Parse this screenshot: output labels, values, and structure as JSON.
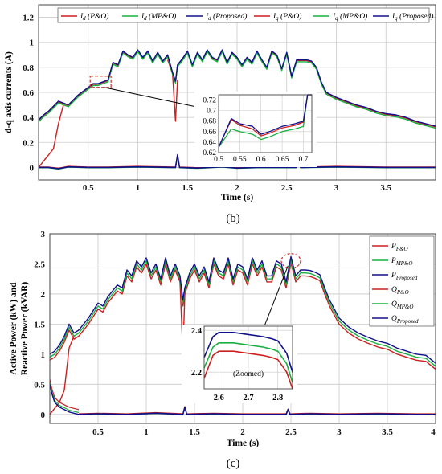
{
  "colors": {
    "red": "#cc2020",
    "green": "#18b040",
    "blue": "#10108a",
    "grid": "#c9c9c9",
    "zoom_box": "#cc3030"
  },
  "chart_data": [
    {
      "type": "line",
      "caption": "(b)",
      "xlabel": "Time (s)",
      "ylabel": "d-q axis currents (A)",
      "xlim": [
        0,
        4
      ],
      "ylim": [
        -0.1,
        1.3
      ],
      "xticks": [
        "0.5",
        "1",
        "1.5",
        "2",
        "2.5",
        "3",
        "3.5"
      ],
      "yticks": [
        "0",
        "0.2",
        "0.4",
        "0.6",
        "0.8",
        "1",
        "1.2"
      ],
      "grid": true,
      "legend_position": "top",
      "legend": [
        {
          "base": "I",
          "sub": "d",
          "tail": " (P&O)",
          "color": "red"
        },
        {
          "base": "I",
          "sub": "d",
          "tail": " (MP&O)",
          "color": "green"
        },
        {
          "base": "I",
          "sub": "d",
          "tail": " (Proposed)",
          "color": "blue"
        },
        {
          "base": "I",
          "sub": "q",
          "tail": " (P&O)",
          "color": "red"
        },
        {
          "base": "I",
          "sub": "q",
          "tail": " (MP&O)",
          "color": "green"
        },
        {
          "base": "I",
          "sub": "q",
          "tail": " (Proposed)",
          "color": "blue"
        }
      ],
      "series_main": {
        "x": [
          0,
          0.05,
          0.1,
          0.2,
          0.3,
          0.4,
          0.5,
          0.55,
          0.6,
          0.7,
          0.75,
          0.8,
          0.85,
          0.9,
          0.95,
          1.0,
          1.05,
          1.1,
          1.15,
          1.2,
          1.25,
          1.3,
          1.35,
          1.38,
          1.4,
          1.45,
          1.5,
          1.55,
          1.6,
          1.65,
          1.7,
          1.75,
          1.8,
          1.85,
          1.9,
          1.95,
          2.0,
          2.05,
          2.1,
          2.15,
          2.2,
          2.25,
          2.3,
          2.35,
          2.4,
          2.45,
          2.5,
          2.55,
          2.6,
          2.65,
          2.7,
          2.75,
          2.8,
          2.85,
          2.9,
          3.0,
          3.1,
          3.2,
          3.3,
          3.4,
          3.5,
          3.6,
          3.7,
          3.8,
          3.9,
          4.0
        ],
        "proposed": [
          0.38,
          0.42,
          0.45,
          0.53,
          0.5,
          0.58,
          0.64,
          0.67,
          0.67,
          0.7,
          0.84,
          0.82,
          0.93,
          0.9,
          0.88,
          0.94,
          0.88,
          0.93,
          0.85,
          0.92,
          0.85,
          0.9,
          0.76,
          0.69,
          0.82,
          0.87,
          0.93,
          0.82,
          0.92,
          0.86,
          0.94,
          0.88,
          0.86,
          0.94,
          0.84,
          0.92,
          0.88,
          0.82,
          0.88,
          0.84,
          0.93,
          0.86,
          0.8,
          0.93,
          0.9,
          0.79,
          0.92,
          0.73,
          0.86,
          0.86,
          0.86,
          0.85,
          0.8,
          0.68,
          0.6,
          0.56,
          0.53,
          0.5,
          0.48,
          0.45,
          0.43,
          0.42,
          0.4,
          0.37,
          0.35,
          0.33
        ],
        "mpo_offset": -0.015,
        "po_offset": -0.005
      },
      "series_po_startup": {
        "x": [
          0,
          0.05,
          0.1,
          0.15,
          0.2,
          0.25
        ],
        "values": [
          0.0,
          0.05,
          0.1,
          0.15,
          0.35,
          0.5
        ]
      },
      "series_po_dip": {
        "x": [
          1.3,
          1.35,
          1.38,
          1.4
        ],
        "values": [
          0.86,
          0.75,
          0.37,
          0.7
        ]
      },
      "series_iq": {
        "x": [
          0,
          0.1,
          0.2,
          0.3,
          0.5,
          0.7,
          1.0,
          1.38,
          1.4,
          1.42,
          1.6,
          1.85,
          2.0,
          2.2,
          2.6,
          2.62,
          2.64,
          3.0,
          3.5,
          4.0
        ],
        "values": [
          0.0,
          0.0,
          -0.01,
          0.005,
          0.0,
          0.0,
          0.005,
          0.0,
          0.1,
          0.0,
          -0.005,
          0.005,
          -0.005,
          0.0,
          0.0,
          0.06,
          0.0,
          0.005,
          0.0,
          0.0
        ]
      },
      "inset": {
        "xlim": [
          0.5,
          0.72
        ],
        "ylim": [
          0.62,
          0.73
        ],
        "xticks": [
          "0.5",
          "0.55",
          "0.6",
          "0.65",
          "0.7"
        ],
        "yticks": [
          "0.62",
          "0.64",
          "0.66",
          "0.68",
          "0.7",
          "0.72"
        ],
        "x": [
          0.5,
          0.53,
          0.55,
          0.58,
          0.6,
          0.62,
          0.65,
          0.68,
          0.7,
          0.71,
          0.72
        ],
        "proposed": [
          0.63,
          0.685,
          0.675,
          0.67,
          0.655,
          0.66,
          0.67,
          0.675,
          0.68,
          0.73,
          0.73
        ],
        "red": [
          0.63,
          0.683,
          0.672,
          0.665,
          0.652,
          0.657,
          0.667,
          0.672,
          0.678,
          0.73,
          0.73
        ],
        "green": [
          0.63,
          0.665,
          0.66,
          0.655,
          0.645,
          0.65,
          0.66,
          0.665,
          0.67,
          0.73,
          0.73
        ]
      }
    },
    {
      "type": "line",
      "caption": "(c)",
      "xlabel": "Time (s)",
      "ylabel": "Active Power (kW) and Reactive Power (kVAR)",
      "ylabel_line1": "Active Power (kW) and",
      "ylabel_line2": "Reactive Power (kVAR)",
      "xlim": [
        0,
        4
      ],
      "ylim": [
        -0.15,
        3.0
      ],
      "xticks": [
        "0.5",
        "1",
        "1.5",
        "2",
        "2.5",
        "3",
        "3.5",
        "4"
      ],
      "yticks": [
        "0",
        "0.5",
        "1",
        "1.5",
        "2",
        "2.5",
        "3"
      ],
      "grid": true,
      "legend_position": "top-right",
      "legend": [
        {
          "base": "P",
          "sub": "P&O",
          "color": "red"
        },
        {
          "base": "P",
          "sub": "MP&O",
          "color": "green"
        },
        {
          "base": "P",
          "sub": "Proposed",
          "color": "blue"
        },
        {
          "base": "Q",
          "sub": "P&O",
          "color": "red"
        },
        {
          "base": "Q",
          "sub": "MP&O",
          "color": "green"
        },
        {
          "base": "Q",
          "sub": "Proposed",
          "color": "blue"
        }
      ],
      "series_main": {
        "x": [
          0,
          0.05,
          0.1,
          0.15,
          0.2,
          0.25,
          0.3,
          0.4,
          0.5,
          0.55,
          0.6,
          0.7,
          0.75,
          0.8,
          0.85,
          0.9,
          0.95,
          1.0,
          1.05,
          1.1,
          1.15,
          1.2,
          1.25,
          1.3,
          1.35,
          1.38,
          1.4,
          1.45,
          1.5,
          1.55,
          1.6,
          1.65,
          1.7,
          1.75,
          1.8,
          1.85,
          1.9,
          1.95,
          2.0,
          2.05,
          2.1,
          2.15,
          2.2,
          2.25,
          2.3,
          2.35,
          2.4,
          2.45,
          2.5,
          2.55,
          2.6,
          2.65,
          2.7,
          2.75,
          2.8,
          2.85,
          2.9,
          3.0,
          3.1,
          3.2,
          3.3,
          3.4,
          3.5,
          3.6,
          3.7,
          3.8,
          3.9,
          4.0
        ],
        "proposed": [
          1.0,
          1.05,
          1.15,
          1.3,
          1.5,
          1.35,
          1.4,
          1.6,
          1.85,
          1.8,
          1.95,
          2.15,
          2.1,
          2.4,
          2.3,
          2.55,
          2.45,
          2.6,
          2.35,
          2.5,
          2.25,
          2.6,
          2.3,
          2.5,
          2.3,
          1.9,
          2.1,
          2.35,
          2.5,
          2.3,
          2.45,
          2.2,
          2.6,
          2.4,
          2.35,
          2.6,
          2.25,
          2.5,
          2.45,
          2.25,
          2.6,
          2.4,
          2.55,
          2.3,
          2.3,
          2.55,
          2.5,
          2.2,
          2.62,
          2.3,
          2.4,
          2.4,
          2.39,
          2.36,
          2.32,
          2.1,
          1.9,
          1.6,
          1.45,
          1.35,
          1.28,
          1.22,
          1.18,
          1.1,
          1.05,
          1.0,
          0.98,
          0.85
        ],
        "mpo_offset": -0.05,
        "po_offset": -0.1
      },
      "series_po_startup": {
        "x": [
          0,
          0.1,
          0.15,
          0.2,
          0.25
        ],
        "values": [
          0.0,
          0.2,
          0.4,
          1.1,
          1.3
        ]
      },
      "series_po_dip": {
        "x": [
          1.3,
          1.35,
          1.38,
          1.4
        ],
        "values": [
          2.4,
          2.2,
          1.0,
          2.0
        ]
      },
      "series_q_decay": {
        "x": [
          0,
          0.02,
          0.05,
          0.1,
          0.15,
          0.2,
          0.25,
          0.3
        ],
        "values": [
          0.5,
          0.35,
          0.2,
          0.12,
          0.08,
          0.04,
          0.02,
          0.0
        ]
      },
      "series_q_tail": {
        "x": [
          0.3,
          0.5,
          0.8,
          1.1,
          1.38,
          1.4,
          1.42,
          1.7,
          2.0,
          2.45,
          2.47,
          2.49,
          2.7,
          3.0,
          3.4,
          3.8,
          4.0
        ],
        "values": [
          0.0,
          0.01,
          0.0,
          0.02,
          0.0,
          0.12,
          0.0,
          0.01,
          0.0,
          0.0,
          0.08,
          0.0,
          0.01,
          0.0,
          0.01,
          0.0,
          0.0
        ]
      },
      "inset": {
        "note": "(Zoomed)",
        "xlim": [
          2.55,
          2.85
        ],
        "ylim": [
          2.12,
          2.42
        ],
        "xticks": [
          "2.6",
          "2.7",
          "2.8"
        ],
        "yticks": [
          "2.2",
          "2.4"
        ],
        "x": [
          2.55,
          2.58,
          2.6,
          2.65,
          2.7,
          2.75,
          2.78,
          2.8,
          2.83,
          2.85
        ],
        "blue": [
          2.27,
          2.37,
          2.39,
          2.39,
          2.38,
          2.37,
          2.36,
          2.35,
          2.29,
          2.2
        ],
        "green": [
          2.22,
          2.32,
          2.34,
          2.34,
          2.33,
          2.32,
          2.31,
          2.3,
          2.24,
          2.15
        ],
        "red": [
          2.17,
          2.28,
          2.3,
          2.3,
          2.29,
          2.28,
          2.27,
          2.26,
          2.2,
          2.12
        ]
      }
    }
  ]
}
